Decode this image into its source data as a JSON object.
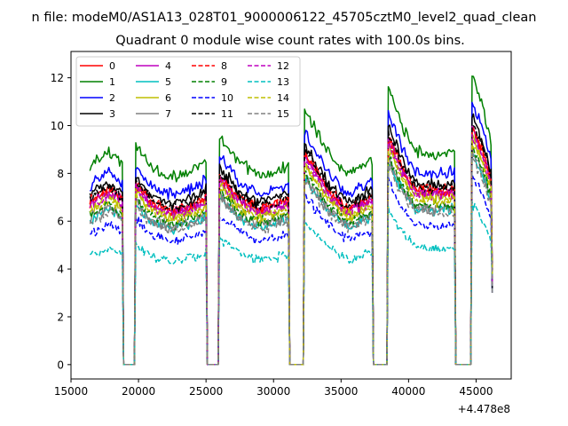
{
  "figure": {
    "suptitle": "n file: modeM0/AS1A13_028T01_9000006122_45705cztM0_level2_quad_clean",
    "title": "Quadrant 0 module wise count rates with 100.0s bins.",
    "offset_label": "+4.478e8"
  },
  "chart_data": {
    "type": "line",
    "title": "Quadrant 0 module wise count rates with 100.0s bins.",
    "xlabel": "",
    "ylabel": "",
    "x_offset": 447800000,
    "xlim": [
      15000,
      47600
    ],
    "ylim": [
      -0.6,
      13.1
    ],
    "xticks": [
      15000,
      20000,
      25000,
      30000,
      35000,
      40000,
      45000
    ],
    "xtick_labels": [
      "15000",
      "20000",
      "25000",
      "30000",
      "35000",
      "40000",
      "45000"
    ],
    "yticks": [
      0,
      2,
      4,
      6,
      8,
      10,
      12
    ],
    "ytick_labels": [
      "0",
      "2",
      "4",
      "6",
      "8",
      "10",
      "12"
    ],
    "grid": false,
    "legend_position": "upper-left",
    "legend_columns": 4,
    "x_start": 16400,
    "x_step": 100,
    "gaps": [
      [
        19000,
        19600
      ],
      [
        25200,
        25800
      ],
      [
        31300,
        32200
      ],
      [
        37500,
        38400
      ],
      [
        43600,
        44600
      ],
      [
        46200,
        46200
      ]
    ],
    "segment_trend": [
      [
        [
          16400,
          8.3
        ],
        [
          17800,
          8.9
        ],
        [
          18800,
          8.4
        ]
      ],
      [
        [
          19800,
          9.2
        ],
        [
          21000,
          8.2
        ],
        [
          22500,
          7.8
        ],
        [
          24000,
          8.1
        ],
        [
          25000,
          8.5
        ]
      ],
      [
        [
          26000,
          9.6
        ],
        [
          27500,
          8.4
        ],
        [
          29000,
          7.9
        ],
        [
          30500,
          8.2
        ],
        [
          31100,
          8.3
        ]
      ],
      [
        [
          32300,
          10.7
        ],
        [
          34000,
          8.9
        ],
        [
          35500,
          7.9
        ],
        [
          37300,
          8.5
        ]
      ],
      [
        [
          38500,
          11.6
        ],
        [
          39500,
          10.0
        ],
        [
          40500,
          8.9
        ],
        [
          42000,
          8.8
        ],
        [
          43400,
          8.9
        ]
      ],
      [
        [
          44700,
          12.1
        ],
        [
          45400,
          11.0
        ],
        [
          46100,
          9.4
        ]
      ]
    ],
    "series": [
      {
        "name": "0",
        "color": "#ff0000",
        "dash": "solid",
        "level": 7.0
      },
      {
        "name": "1",
        "color": "#008000",
        "dash": "solid",
        "level": 8.5
      },
      {
        "name": "2",
        "color": "#0000ff",
        "dash": "solid",
        "level": 7.7
      },
      {
        "name": "3",
        "color": "#000000",
        "dash": "solid",
        "level": 7.3
      },
      {
        "name": "4",
        "color": "#bf00bf",
        "dash": "solid",
        "level": 6.9
      },
      {
        "name": "5",
        "color": "#00bfbf",
        "dash": "solid",
        "level": 6.2
      },
      {
        "name": "6",
        "color": "#bfbf00",
        "dash": "solid",
        "level": 6.7
      },
      {
        "name": "7",
        "color": "#808080",
        "dash": "solid",
        "level": 6.3
      },
      {
        "name": "8",
        "color": "#ff0000",
        "dash": "dashed",
        "level": 7.0
      },
      {
        "name": "9",
        "color": "#008000",
        "dash": "dashed",
        "level": 6.4
      },
      {
        "name": "10",
        "color": "#0000ff",
        "dash": "dashed",
        "level": 5.6
      },
      {
        "name": "11",
        "color": "#000000",
        "dash": "dashed",
        "level": 7.1
      },
      {
        "name": "12",
        "color": "#bf00bf",
        "dash": "dashed",
        "level": 6.8
      },
      {
        "name": "13",
        "color": "#00bfbf",
        "dash": "dashed",
        "level": 4.7
      },
      {
        "name": "14",
        "color": "#bfbf00",
        "dash": "dashed",
        "level": 6.6
      },
      {
        "name": "15",
        "color": "#808080",
        "dash": "dashed",
        "level": 6.1
      }
    ]
  }
}
